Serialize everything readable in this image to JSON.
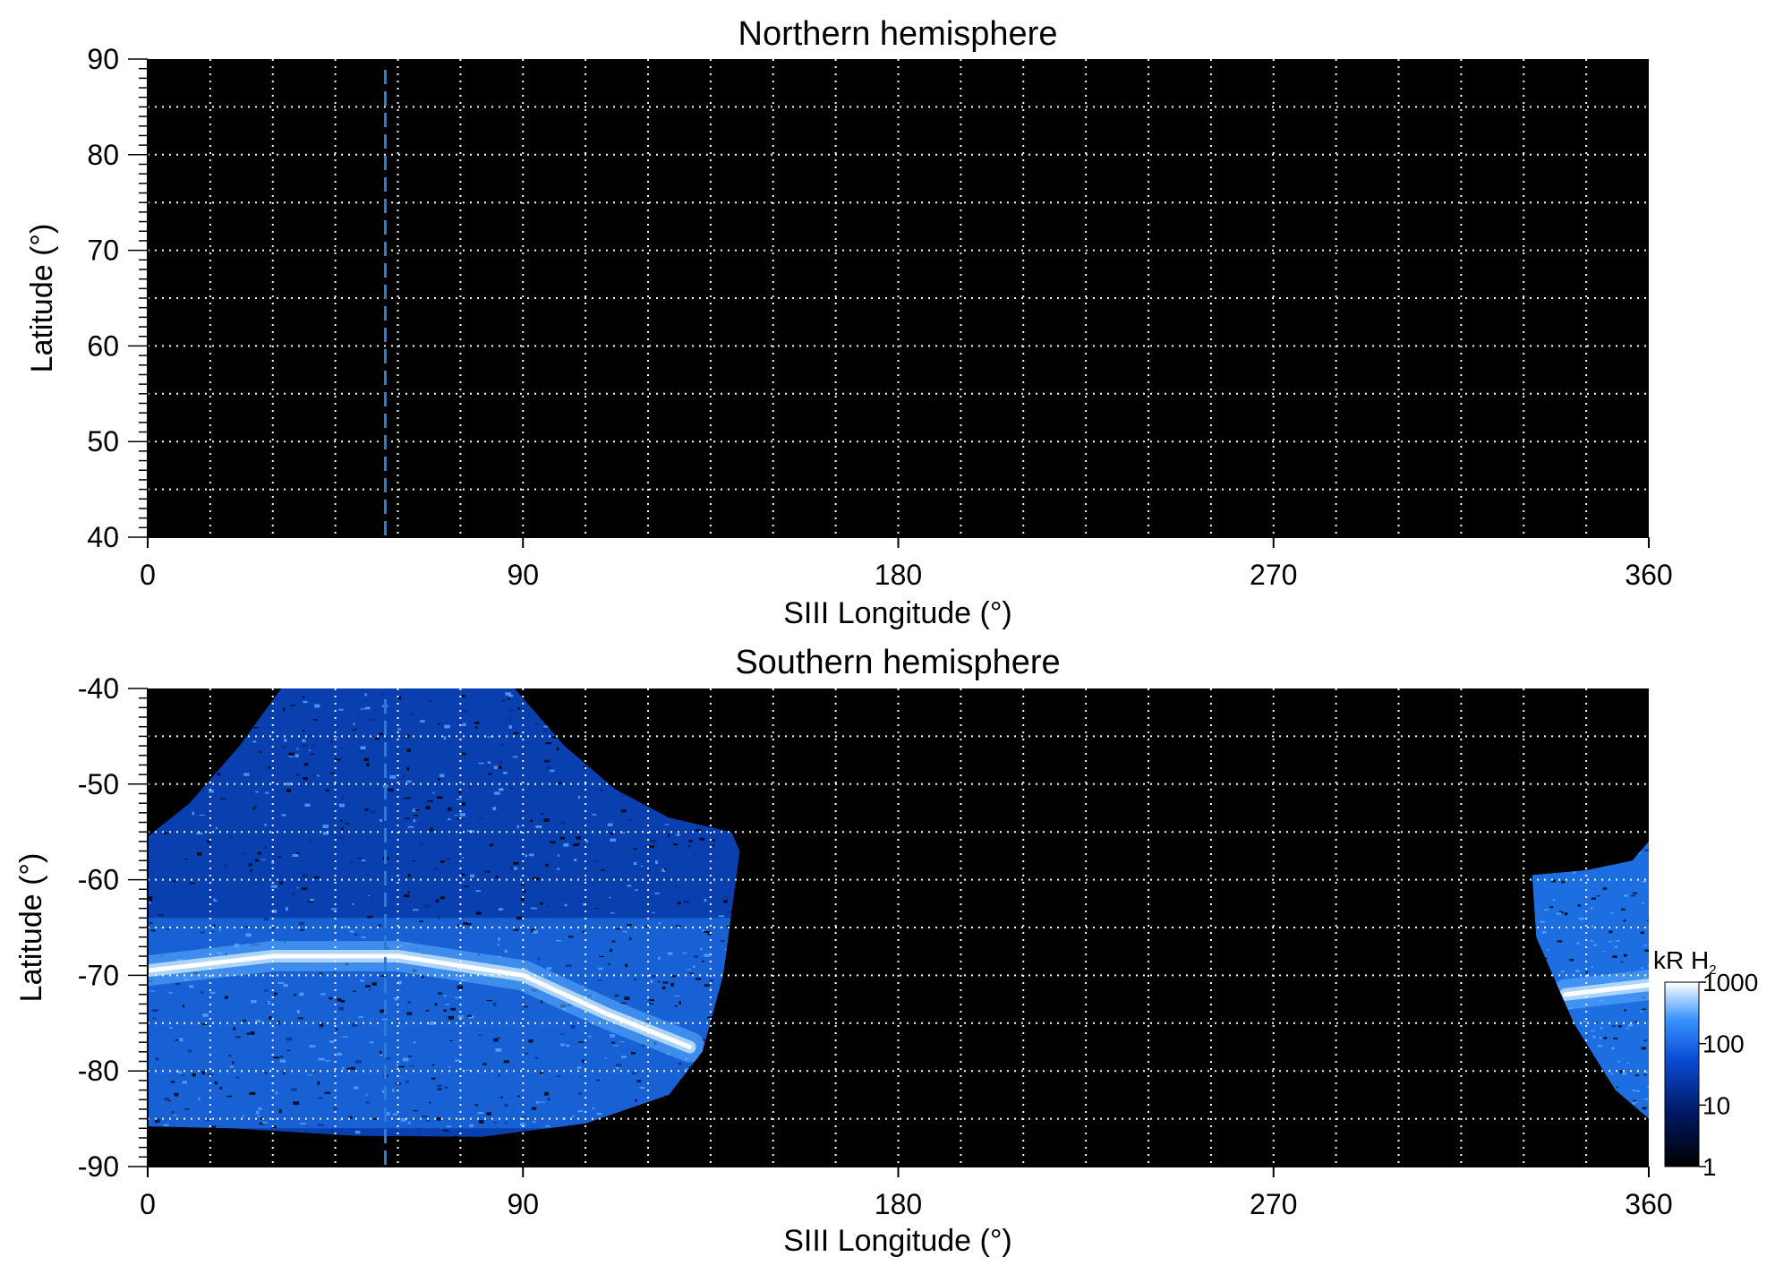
{
  "chart_data": [
    {
      "type": "heatmap",
      "title": "Northern hemisphere",
      "xlabel": "SIII Longitude (°)",
      "ylabel": "Latitude (°)",
      "xlim": [
        0,
        360
      ],
      "ylim": [
        40,
        90
      ],
      "xticks": [
        "0",
        "90",
        "180",
        "270",
        "360"
      ],
      "yticks": [
        "40",
        "50",
        "60",
        "70",
        "80",
        "90"
      ],
      "grid": "dotted",
      "grid_color": "#ffffff",
      "background_color": "#000000",
      "marker_longitude": 57,
      "marker_color": "#2e7bd6"
    },
    {
      "type": "heatmap",
      "title": "Southern hemisphere",
      "xlabel": "SIII Longitude (°)",
      "ylabel": "Latitude (°)",
      "xlim": [
        0,
        360
      ],
      "ylim": [
        -90,
        -40
      ],
      "xticks": [
        "0",
        "90",
        "180",
        "270",
        "360"
      ],
      "yticks": [
        "-40",
        "-50",
        "-60",
        "-70",
        "-80",
        "-90"
      ],
      "grid": "dotted",
      "grid_color": "#ffffff",
      "background_color": "#000000",
      "marker_longitude": 57,
      "marker_color": "#2e7bd6",
      "emission_regions": [
        {
          "lon_range": [
            0,
            142
          ],
          "lat_range": [
            -87,
            -40
          ]
        },
        {
          "lon_range": [
            332,
            360
          ],
          "lat_range": [
            -85,
            -56
          ]
        }
      ],
      "auroral_oval": [
        {
          "lon": 0,
          "lat": -69.5
        },
        {
          "lon": 30,
          "lat": -68
        },
        {
          "lon": 60,
          "lat": -68
        },
        {
          "lon": 90,
          "lat": -70
        },
        {
          "lon": 110,
          "lat": -74
        },
        {
          "lon": 130,
          "lat": -77.5
        },
        {
          "lon": 340,
          "lat": -72
        },
        {
          "lon": 360,
          "lat": -71
        }
      ],
      "colorbar": {
        "label_main": "kR H",
        "label_sub": "2",
        "scale": "log",
        "range": [
          1,
          1000
        ],
        "ticks": [
          "1",
          "10",
          "100",
          "1000"
        ],
        "colors": [
          "#000000",
          "#001a66",
          "#0a4bd6",
          "#3a94ff",
          "#ffffff"
        ]
      }
    }
  ]
}
